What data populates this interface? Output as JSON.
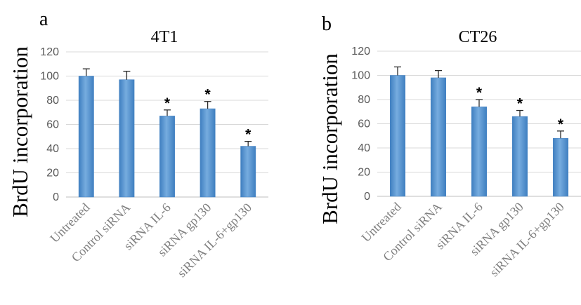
{
  "chart_data": [
    {
      "type": "bar",
      "panel_letter": "a",
      "title": "4T1",
      "ylabel": "BrdU incorporation",
      "xlabel": "",
      "ylim": [
        0,
        120
      ],
      "yticks": [
        "0",
        "20",
        "40",
        "60",
        "80",
        "100",
        "120"
      ],
      "grid": true,
      "categories": [
        "Untreated",
        "Control siRNA",
        "siRNA IL-6",
        "siRNA gp130",
        "siRNA IL-6+gp130"
      ],
      "values": [
        100,
        97,
        67,
        73,
        42
      ],
      "errors": [
        6,
        7,
        5,
        6,
        4
      ],
      "annotations": [
        "",
        "",
        "*",
        "*",
        "*"
      ],
      "bar_color": "#5b9bd5"
    },
    {
      "type": "bar",
      "panel_letter": "b",
      "title": "CT26",
      "ylabel": "BrdU incorporation",
      "xlabel": "",
      "ylim": [
        0,
        120
      ],
      "yticks": [
        "0",
        "20",
        "40",
        "60",
        "80",
        "100",
        "120"
      ],
      "grid": true,
      "categories": [
        "Untreated",
        "Control siRNA",
        "siRNA IL-6",
        "siRNA gp130",
        "siRNA IL-6+gp130"
      ],
      "values": [
        100,
        98,
        74,
        66,
        48
      ],
      "errors": [
        7,
        6,
        6,
        5,
        6
      ],
      "annotations": [
        "",
        "",
        "*",
        "*",
        "*"
      ],
      "bar_color": "#5b9bd5"
    }
  ]
}
